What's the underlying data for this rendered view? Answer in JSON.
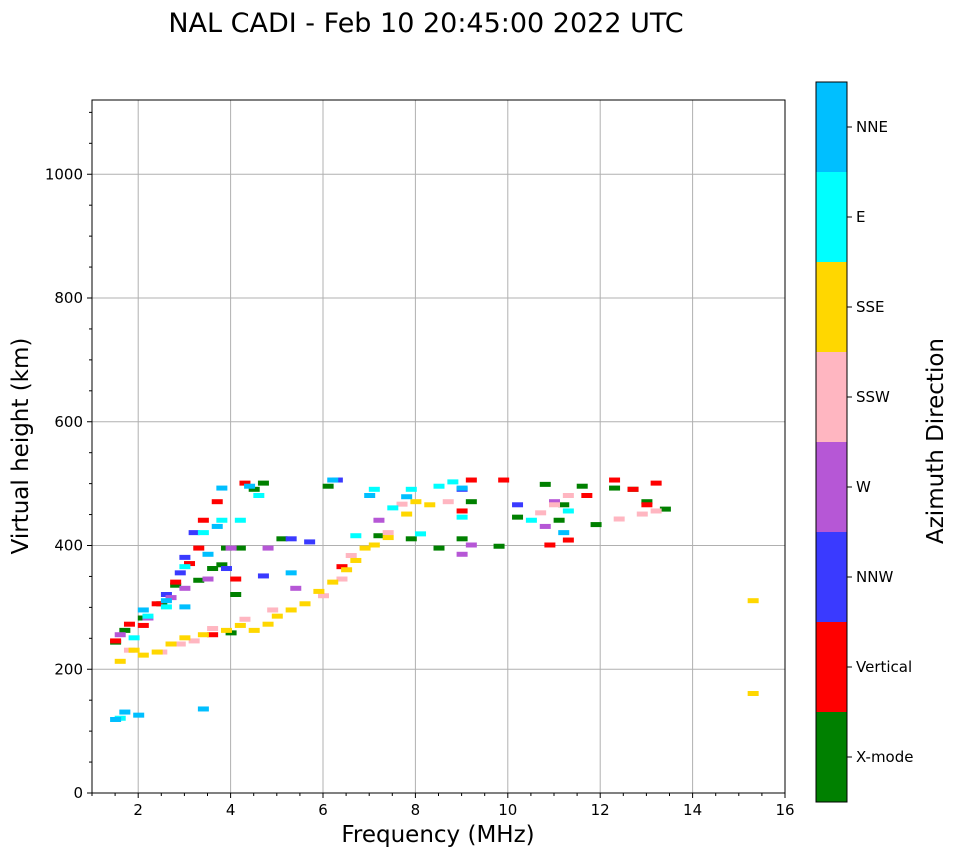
{
  "chart_data": {
    "type": "scatter",
    "title": "NAL CADI - Feb 10 20:45:00 2022 UTC",
    "xlabel": "Frequency (MHz)",
    "ylabel": "Virtual height (km)",
    "xlim": [
      1,
      16
    ],
    "ylim": [
      0,
      1120
    ],
    "xticks": [
      2,
      4,
      6,
      8,
      10,
      12,
      14,
      16
    ],
    "yticks": [
      0,
      200,
      400,
      600,
      800,
      1000
    ],
    "grid": true,
    "colorbar": {
      "title": "Azimuth Direction",
      "categories": [
        {
          "name": "X-mode",
          "color": "#008000"
        },
        {
          "name": "Vertical",
          "color": "#ff0000"
        },
        {
          "name": "NNW",
          "color": "#3a3aff"
        },
        {
          "name": "W",
          "color": "#b657d6"
        },
        {
          "name": "SSW",
          "color": "#ffb6c1"
        },
        {
          "name": "SSE",
          "color": "#ffd700"
        },
        {
          "name": "E",
          "color": "#00ffff"
        },
        {
          "name": "NNE",
          "color": "#00bfff"
        }
      ]
    },
    "series": [
      {
        "name": "X-mode",
        "points": [
          [
            1.5,
            243
          ],
          [
            1.7,
            262
          ],
          [
            2.1,
            282
          ],
          [
            2.5,
            305
          ],
          [
            2.8,
            335
          ],
          [
            3.3,
            343
          ],
          [
            3.6,
            362
          ],
          [
            3.8,
            368
          ],
          [
            3.9,
            395
          ],
          [
            4.0,
            258
          ],
          [
            4.1,
            320
          ],
          [
            4.2,
            395
          ],
          [
            4.5,
            490
          ],
          [
            4.7,
            500
          ],
          [
            5.1,
            410
          ],
          [
            6.1,
            495
          ],
          [
            7.2,
            415
          ],
          [
            7.9,
            410
          ],
          [
            8.5,
            395
          ],
          [
            9.0,
            410
          ],
          [
            9.2,
            470
          ],
          [
            9.8,
            398
          ],
          [
            10.2,
            445
          ],
          [
            10.8,
            498
          ],
          [
            11.1,
            440
          ],
          [
            11.2,
            465
          ],
          [
            11.6,
            495
          ],
          [
            11.9,
            433
          ],
          [
            12.3,
            492
          ],
          [
            12.7,
            490
          ],
          [
            13.0,
            470
          ],
          [
            13.4,
            458
          ]
        ]
      },
      {
        "name": "Vertical",
        "points": [
          [
            1.5,
            245
          ],
          [
            1.8,
            272
          ],
          [
            2.1,
            270
          ],
          [
            2.4,
            305
          ],
          [
            2.8,
            340
          ],
          [
            3.1,
            370
          ],
          [
            3.3,
            395
          ],
          [
            3.4,
            440
          ],
          [
            3.6,
            255
          ],
          [
            3.7,
            470
          ],
          [
            4.1,
            345
          ],
          [
            4.3,
            500
          ],
          [
            6.4,
            365
          ],
          [
            9.0,
            455
          ],
          [
            9.2,
            505
          ],
          [
            9.9,
            505
          ],
          [
            10.9,
            400
          ],
          [
            11.3,
            408
          ],
          [
            11.7,
            480
          ],
          [
            12.3,
            505
          ],
          [
            12.7,
            490
          ],
          [
            13.0,
            465
          ],
          [
            13.2,
            500
          ]
        ]
      },
      {
        "name": "NNW",
        "points": [
          [
            2.6,
            320
          ],
          [
            2.9,
            355
          ],
          [
            3.0,
            380
          ],
          [
            3.2,
            420
          ],
          [
            3.9,
            362
          ],
          [
            4.7,
            350
          ],
          [
            5.3,
            410
          ],
          [
            5.7,
            405
          ],
          [
            6.3,
            505
          ],
          [
            9.0,
            490
          ],
          [
            10.2,
            465
          ]
        ]
      },
      {
        "name": "W",
        "points": [
          [
            1.6,
            255
          ],
          [
            2.2,
            282
          ],
          [
            2.7,
            315
          ],
          [
            3.0,
            330
          ],
          [
            3.5,
            345
          ],
          [
            4.0,
            395
          ],
          [
            4.8,
            395
          ],
          [
            5.4,
            330
          ],
          [
            7.2,
            440
          ],
          [
            9.0,
            385
          ],
          [
            9.2,
            400
          ],
          [
            10.8,
            430
          ],
          [
            11.0,
            470
          ]
        ]
      },
      {
        "name": "SSW",
        "points": [
          [
            1.8,
            230
          ],
          [
            2.5,
            227
          ],
          [
            2.9,
            240
          ],
          [
            3.2,
            245
          ],
          [
            3.6,
            265
          ],
          [
            4.3,
            280
          ],
          [
            4.9,
            295
          ],
          [
            6.0,
            318
          ],
          [
            6.4,
            345
          ],
          [
            6.6,
            383
          ],
          [
            7.4,
            420
          ],
          [
            7.7,
            466
          ],
          [
            8.7,
            470
          ],
          [
            10.7,
            452
          ],
          [
            11.0,
            465
          ],
          [
            11.3,
            480
          ],
          [
            12.4,
            442
          ],
          [
            12.9,
            450
          ],
          [
            13.2,
            455
          ]
        ]
      },
      {
        "name": "SSE",
        "points": [
          [
            1.6,
            212
          ],
          [
            1.9,
            230
          ],
          [
            2.1,
            222
          ],
          [
            2.4,
            227
          ],
          [
            2.7,
            240
          ],
          [
            3.0,
            250
          ],
          [
            3.4,
            255
          ],
          [
            3.9,
            262
          ],
          [
            4.2,
            270
          ],
          [
            4.5,
            262
          ],
          [
            4.8,
            272
          ],
          [
            5.0,
            285
          ],
          [
            5.3,
            295
          ],
          [
            5.6,
            305
          ],
          [
            5.9,
            325
          ],
          [
            6.2,
            340
          ],
          [
            6.5,
            360
          ],
          [
            6.7,
            375
          ],
          [
            6.9,
            395
          ],
          [
            7.1,
            400
          ],
          [
            7.4,
            412
          ],
          [
            7.8,
            450
          ],
          [
            8.0,
            470
          ],
          [
            8.3,
            465
          ],
          [
            15.3,
            160
          ],
          [
            15.3,
            310
          ]
        ]
      },
      {
        "name": "E",
        "points": [
          [
            1.6,
            120
          ],
          [
            1.9,
            250
          ],
          [
            2.2,
            285
          ],
          [
            2.6,
            300
          ],
          [
            3.0,
            365
          ],
          [
            3.4,
            420
          ],
          [
            3.8,
            440
          ],
          [
            4.2,
            440
          ],
          [
            4.6,
            480
          ],
          [
            6.7,
            415
          ],
          [
            7.1,
            490
          ],
          [
            7.5,
            460
          ],
          [
            7.9,
            490
          ],
          [
            8.1,
            418
          ],
          [
            8.5,
            495
          ],
          [
            8.8,
            502
          ],
          [
            9.0,
            445
          ],
          [
            10.5,
            440
          ],
          [
            11.3,
            455
          ]
        ]
      },
      {
        "name": "NNE",
        "points": [
          [
            1.5,
            118
          ],
          [
            1.7,
            130
          ],
          [
            2.0,
            125
          ],
          [
            2.1,
            295
          ],
          [
            2.6,
            310
          ],
          [
            3.0,
            300
          ],
          [
            3.4,
            135
          ],
          [
            3.5,
            385
          ],
          [
            3.7,
            430
          ],
          [
            3.8,
            492
          ],
          [
            4.4,
            495
          ],
          [
            5.3,
            355
          ],
          [
            6.2,
            505
          ],
          [
            7.0,
            480
          ],
          [
            7.8,
            478
          ],
          [
            9.0,
            492
          ],
          [
            11.2,
            420
          ]
        ]
      }
    ]
  }
}
